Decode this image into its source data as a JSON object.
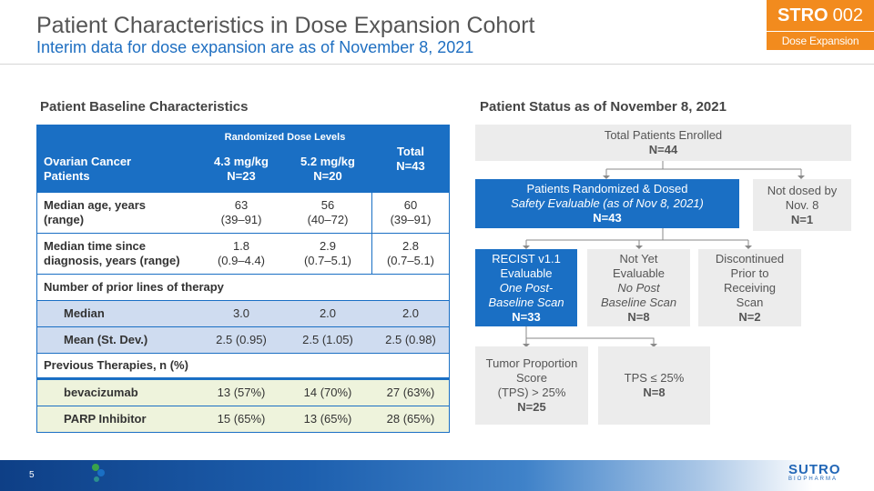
{
  "header": {
    "title": "Patient Characteristics in Dose Expansion Cohort",
    "subtitle": "Interim data for dose expansion are as of November 8, 2021",
    "badge_main": "STRO",
    "badge_num": "002",
    "badge_sub": "Dose Expansion",
    "accent_color": "#f28b1e",
    "brand_color": "#1a6fc4"
  },
  "left": {
    "heading": "Patient Baseline Characteristics",
    "table": {
      "group_header": "Randomized Dose Levels",
      "col0": [
        "Ovarian Cancer",
        "Patients"
      ],
      "col1": [
        "4.3 mg/kg",
        "N=23"
      ],
      "col2": [
        "5.2 mg/kg",
        "N=20"
      ],
      "col3": [
        "Total",
        "N=43"
      ],
      "rows": [
        {
          "label": [
            "Median age, years",
            "(range)"
          ],
          "v1": [
            "63",
            "(39–91)"
          ],
          "v2": [
            "56",
            "(40–72)"
          ],
          "v3": [
            "60",
            "(39–91)"
          ]
        },
        {
          "label": [
            "Median time since",
            "diagnosis, years (range)"
          ],
          "v1": [
            "1.8",
            "(0.9–4.4)"
          ],
          "v2": [
            "2.9",
            "(0.7–5.1)"
          ],
          "v3": [
            "2.8",
            "(0.7–5.1)"
          ]
        }
      ],
      "prior_lines": "Number of prior lines of therapy",
      "median": {
        "label": "Median",
        "v1": "3.0",
        "v2": "2.0",
        "v3": "2.0"
      },
      "mean": {
        "label": "Mean (St. Dev.)",
        "v1": "2.5 (0.95)",
        "v2": "2.5 (1.05)",
        "v3": "2.5 (0.98)"
      },
      "prev_therapies": "Previous Therapies, n (%)",
      "bev": {
        "label": "bevacizumab",
        "v1": "13 (57%)",
        "v2": "14 (70%)",
        "v3": "27 (63%)"
      },
      "parp": {
        "label": "PARP Inhibitor",
        "v1": "15 (65%)",
        "v2": "13 (65%)",
        "v3": "28 (65%)"
      }
    }
  },
  "right": {
    "heading": "Patient Status as of November 8, 2021",
    "enrolled": {
      "line1": "Total Patients Enrolled",
      "n": "N=44"
    },
    "randomized": {
      "line1": "Patients Randomized & Dosed",
      "line2": "Safety Evaluable (as of Nov 8, 2021)",
      "n": "N=43"
    },
    "not_dosed": {
      "line1": "Not dosed by",
      "line2": "Nov. 8",
      "n": "N=1"
    },
    "recist": {
      "line1": "RECIST v1.1",
      "line2": "Evaluable",
      "line3": "One Post-",
      "line4": "Baseline Scan",
      "n": "N=33"
    },
    "not_yet": {
      "line1": "Not Yet",
      "line2": "Evaluable",
      "line3": "No Post",
      "line4": "Baseline Scan",
      "n": "N=8"
    },
    "discontinued": {
      "line1": "Discontinued",
      "line2": "Prior to",
      "line3": "Receiving",
      "line4": "Scan",
      "n": "N=2"
    },
    "tps_high": {
      "line1": "Tumor Proportion",
      "line2": "Score",
      "line3": "(TPS) > 25%",
      "n": "N=25"
    },
    "tps_low": {
      "line1": "TPS ≤ 25%",
      "n": "N=8"
    }
  },
  "footer": {
    "page": "5",
    "logo": "SUTRO",
    "logo_sub": "BIOPHARMA"
  }
}
